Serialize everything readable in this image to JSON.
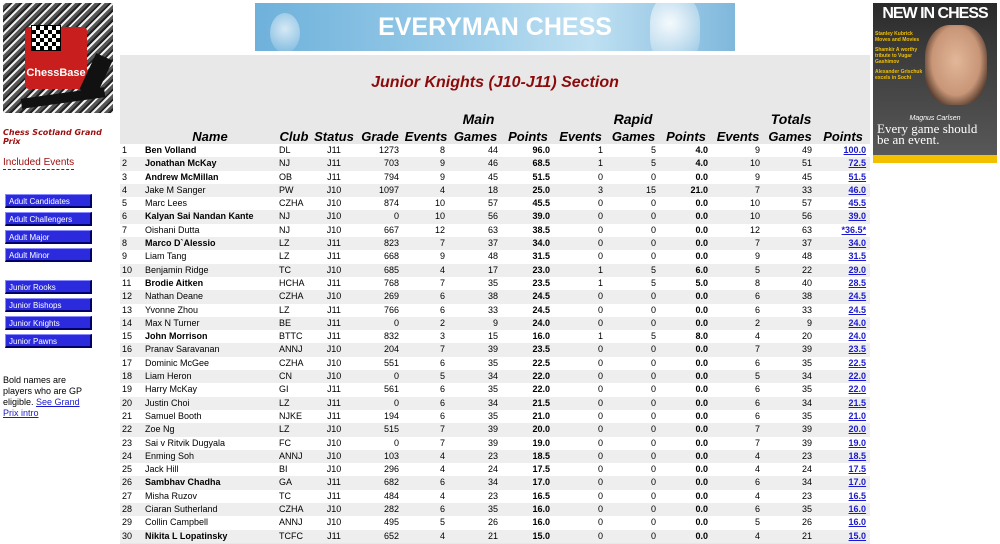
{
  "sidebar": {
    "logo_text": "ChessBase",
    "title": "Chess Scotland Grand Prix",
    "included_label": "Included Events",
    "nav_group1": [
      "Adult Candidates",
      "Adult Challengers",
      "Adult Major",
      "Adult Minor"
    ],
    "nav_group2": [
      "Junior Rooks",
      "Junior Bishops",
      "Junior Knights",
      "Junior Pawns"
    ],
    "note_text": "Bold names are players who are GP eligible.",
    "note_link": "See Grand Prix intro"
  },
  "banner": {
    "text": "EVERYMAN CHESS"
  },
  "magazine": {
    "title": "NEW IN CHESS",
    "line1": "Stanley Kubrick Moves and Movies",
    "line2": "Shamkir A worthy tribute to Vugar Gashimov",
    "line3": "Alexander Grischuk excels in Sochi",
    "cover_name": "Magnus Carlsen",
    "quote": "Every game should be an event."
  },
  "section_title": "Junior Knights (J10-J11) Section",
  "groups": {
    "main": "Main",
    "rapid": "Rapid",
    "totals": "Totals"
  },
  "columns": {
    "name": "Name",
    "club": "Club",
    "status": "Status",
    "grade": "Grade",
    "events": "Events",
    "games": "Games",
    "points": "Points"
  },
  "rows": [
    {
      "rank": "1",
      "name": "Ben Volland",
      "bold": true,
      "club": "DL",
      "status": "J11",
      "grade": "1273",
      "m_events": "8",
      "m_games": "44",
      "m_points": "96.0",
      "r_events": "1",
      "r_games": "5",
      "r_points": "4.0",
      "t_events": "9",
      "t_games": "49",
      "t_points": "100.0"
    },
    {
      "rank": "2",
      "name": "Jonathan McKay",
      "bold": true,
      "club": "NJ",
      "status": "J11",
      "grade": "703",
      "m_events": "9",
      "m_games": "46",
      "m_points": "68.5",
      "r_events": "1",
      "r_games": "5",
      "r_points": "4.0",
      "t_events": "10",
      "t_games": "51",
      "t_points": "72.5"
    },
    {
      "rank": "3",
      "name": "Andrew McMillan",
      "bold": true,
      "club": "OB",
      "status": "J11",
      "grade": "794",
      "m_events": "9",
      "m_games": "45",
      "m_points": "51.5",
      "r_events": "0",
      "r_games": "0",
      "r_points": "0.0",
      "t_events": "9",
      "t_games": "45",
      "t_points": "51.5"
    },
    {
      "rank": "4",
      "name": "Jake M Sanger",
      "bold": false,
      "club": "PW",
      "status": "J10",
      "grade": "1097",
      "m_events": "4",
      "m_games": "18",
      "m_points": "25.0",
      "r_events": "3",
      "r_games": "15",
      "r_points": "21.0",
      "t_events": "7",
      "t_games": "33",
      "t_points": "46.0"
    },
    {
      "rank": "5",
      "name": "Marc Lees",
      "bold": false,
      "club": "CZHA",
      "status": "J10",
      "grade": "874",
      "m_events": "10",
      "m_games": "57",
      "m_points": "45.5",
      "r_events": "0",
      "r_games": "0",
      "r_points": "0.0",
      "t_events": "10",
      "t_games": "57",
      "t_points": "45.5"
    },
    {
      "rank": "6",
      "name": "Kalyan Sai Nandan Kante",
      "bold": true,
      "club": "NJ",
      "status": "J10",
      "grade": "0",
      "m_events": "10",
      "m_games": "56",
      "m_points": "39.0",
      "r_events": "0",
      "r_games": "0",
      "r_points": "0.0",
      "t_events": "10",
      "t_games": "56",
      "t_points": "39.0"
    },
    {
      "rank": "7",
      "name": "Oishani Dutta",
      "bold": false,
      "club": "NJ",
      "status": "J10",
      "grade": "667",
      "m_events": "12",
      "m_games": "63",
      "m_points": "38.5",
      "r_events": "0",
      "r_games": "0",
      "r_points": "0.0",
      "t_events": "12",
      "t_games": "63",
      "t_points": "*36.5*"
    },
    {
      "rank": "8",
      "name": "Marco D`Alessio",
      "bold": true,
      "club": "LZ",
      "status": "J11",
      "grade": "823",
      "m_events": "7",
      "m_games": "37",
      "m_points": "34.0",
      "r_events": "0",
      "r_games": "0",
      "r_points": "0.0",
      "t_events": "7",
      "t_games": "37",
      "t_points": "34.0"
    },
    {
      "rank": "9",
      "name": "Liam Tang",
      "bold": false,
      "club": "LZ",
      "status": "J11",
      "grade": "668",
      "m_events": "9",
      "m_games": "48",
      "m_points": "31.5",
      "r_events": "0",
      "r_games": "0",
      "r_points": "0.0",
      "t_events": "9",
      "t_games": "48",
      "t_points": "31.5"
    },
    {
      "rank": "10",
      "name": "Benjamin Ridge",
      "bold": false,
      "club": "TC",
      "status": "J10",
      "grade": "685",
      "m_events": "4",
      "m_games": "17",
      "m_points": "23.0",
      "r_events": "1",
      "r_games": "5",
      "r_points": "6.0",
      "t_events": "5",
      "t_games": "22",
      "t_points": "29.0"
    },
    {
      "rank": "11",
      "name": "Brodie Aitken",
      "bold": true,
      "club": "HCHA",
      "status": "J11",
      "grade": "768",
      "m_events": "7",
      "m_games": "35",
      "m_points": "23.5",
      "r_events": "1",
      "r_games": "5",
      "r_points": "5.0",
      "t_events": "8",
      "t_games": "40",
      "t_points": "28.5"
    },
    {
      "rank": "12",
      "name": "Nathan Deane",
      "bold": false,
      "club": "CZHA",
      "status": "J10",
      "grade": "269",
      "m_events": "6",
      "m_games": "38",
      "m_points": "24.5",
      "r_events": "0",
      "r_games": "0",
      "r_points": "0.0",
      "t_events": "6",
      "t_games": "38",
      "t_points": "24.5"
    },
    {
      "rank": "13",
      "name": "Yvonne Zhou",
      "bold": false,
      "club": "LZ",
      "status": "J11",
      "grade": "766",
      "m_events": "6",
      "m_games": "33",
      "m_points": "24.5",
      "r_events": "0",
      "r_games": "0",
      "r_points": "0.0",
      "t_events": "6",
      "t_games": "33",
      "t_points": "24.5"
    },
    {
      "rank": "14",
      "name": "Max N Turner",
      "bold": false,
      "club": "BE",
      "status": "J11",
      "grade": "0",
      "m_events": "2",
      "m_games": "9",
      "m_points": "24.0",
      "r_events": "0",
      "r_games": "0",
      "r_points": "0.0",
      "t_events": "2",
      "t_games": "9",
      "t_points": "24.0"
    },
    {
      "rank": "15",
      "name": "John Morrison",
      "bold": true,
      "club": "BTTC",
      "status": "J11",
      "grade": "832",
      "m_events": "3",
      "m_games": "15",
      "m_points": "16.0",
      "r_events": "1",
      "r_games": "5",
      "r_points": "8.0",
      "t_events": "4",
      "t_games": "20",
      "t_points": "24.0"
    },
    {
      "rank": "16",
      "name": "Pranav Saravanan",
      "bold": false,
      "club": "ANNJ",
      "status": "J10",
      "grade": "204",
      "m_events": "7",
      "m_games": "39",
      "m_points": "23.5",
      "r_events": "0",
      "r_games": "0",
      "r_points": "0.0",
      "t_events": "7",
      "t_games": "39",
      "t_points": "23.5"
    },
    {
      "rank": "17",
      "name": "Dominic McGee",
      "bold": false,
      "club": "CZHA",
      "status": "J10",
      "grade": "551",
      "m_events": "6",
      "m_games": "35",
      "m_points": "22.5",
      "r_events": "0",
      "r_games": "0",
      "r_points": "0.0",
      "t_events": "6",
      "t_games": "35",
      "t_points": "22.5"
    },
    {
      "rank": "18",
      "name": "Liam Heron",
      "bold": false,
      "club": "CN",
      "status": "J10",
      "grade": "0",
      "m_events": "5",
      "m_games": "34",
      "m_points": "22.0",
      "r_events": "0",
      "r_games": "0",
      "r_points": "0.0",
      "t_events": "5",
      "t_games": "34",
      "t_points": "22.0"
    },
    {
      "rank": "19",
      "name": "Harry McKay",
      "bold": false,
      "club": "GI",
      "status": "J11",
      "grade": "561",
      "m_events": "6",
      "m_games": "35",
      "m_points": "22.0",
      "r_events": "0",
      "r_games": "0",
      "r_points": "0.0",
      "t_events": "6",
      "t_games": "35",
      "t_points": "22.0"
    },
    {
      "rank": "20",
      "name": "Justin Choi",
      "bold": false,
      "club": "LZ",
      "status": "J11",
      "grade": "0",
      "m_events": "6",
      "m_games": "34",
      "m_points": "21.5",
      "r_events": "0",
      "r_games": "0",
      "r_points": "0.0",
      "t_events": "6",
      "t_games": "34",
      "t_points": "21.5"
    },
    {
      "rank": "21",
      "name": "Samuel Booth",
      "bold": false,
      "club": "NJKE",
      "status": "J11",
      "grade": "194",
      "m_events": "6",
      "m_games": "35",
      "m_points": "21.0",
      "r_events": "0",
      "r_games": "0",
      "r_points": "0.0",
      "t_events": "6",
      "t_games": "35",
      "t_points": "21.0"
    },
    {
      "rank": "22",
      "name": "Zoe Ng",
      "bold": false,
      "club": "LZ",
      "status": "J10",
      "grade": "515",
      "m_events": "7",
      "m_games": "39",
      "m_points": "20.0",
      "r_events": "0",
      "r_games": "0",
      "r_points": "0.0",
      "t_events": "7",
      "t_games": "39",
      "t_points": "20.0"
    },
    {
      "rank": "23",
      "name": "Sai v Ritvik Dugyala",
      "bold": false,
      "club": "FC",
      "status": "J10",
      "grade": "0",
      "m_events": "7",
      "m_games": "39",
      "m_points": "19.0",
      "r_events": "0",
      "r_games": "0",
      "r_points": "0.0",
      "t_events": "7",
      "t_games": "39",
      "t_points": "19.0"
    },
    {
      "rank": "24",
      "name": "Enming Soh",
      "bold": false,
      "club": "ANNJ",
      "status": "J10",
      "grade": "103",
      "m_events": "4",
      "m_games": "23",
      "m_points": "18.5",
      "r_events": "0",
      "r_games": "0",
      "r_points": "0.0",
      "t_events": "4",
      "t_games": "23",
      "t_points": "18.5"
    },
    {
      "rank": "25",
      "name": "Jack Hill",
      "bold": false,
      "club": "BI",
      "status": "J10",
      "grade": "296",
      "m_events": "4",
      "m_games": "24",
      "m_points": "17.5",
      "r_events": "0",
      "r_games": "0",
      "r_points": "0.0",
      "t_events": "4",
      "t_games": "24",
      "t_points": "17.5"
    },
    {
      "rank": "26",
      "name": "Sambhav Chadha",
      "bold": true,
      "club": "GA",
      "status": "J11",
      "grade": "682",
      "m_events": "6",
      "m_games": "34",
      "m_points": "17.0",
      "r_events": "0",
      "r_games": "0",
      "r_points": "0.0",
      "t_events": "6",
      "t_games": "34",
      "t_points": "17.0"
    },
    {
      "rank": "27",
      "name": "Misha Ruzov",
      "bold": false,
      "club": "TC",
      "status": "J11",
      "grade": "484",
      "m_events": "4",
      "m_games": "23",
      "m_points": "16.5",
      "r_events": "0",
      "r_games": "0",
      "r_points": "0.0",
      "t_events": "4",
      "t_games": "23",
      "t_points": "16.5"
    },
    {
      "rank": "28",
      "name": "Ciaran Sutherland",
      "bold": false,
      "club": "CZHA",
      "status": "J10",
      "grade": "282",
      "m_events": "6",
      "m_games": "35",
      "m_points": "16.0",
      "r_events": "0",
      "r_games": "0",
      "r_points": "0.0",
      "t_events": "6",
      "t_games": "35",
      "t_points": "16.0"
    },
    {
      "rank": "29",
      "name": "Collin Campbell",
      "bold": false,
      "club": "ANNJ",
      "status": "J10",
      "grade": "495",
      "m_events": "5",
      "m_games": "26",
      "m_points": "16.0",
      "r_events": "0",
      "r_games": "0",
      "r_points": "0.0",
      "t_events": "5",
      "t_games": "26",
      "t_points": "16.0"
    },
    {
      "rank": "30",
      "name": "Nikita L Lopatinsky",
      "bold": true,
      "club": "TCFC",
      "status": "J11",
      "grade": "652",
      "m_events": "4",
      "m_games": "21",
      "m_points": "15.0",
      "r_events": "0",
      "r_games": "0",
      "r_points": "0.0",
      "t_events": "4",
      "t_games": "21",
      "t_points": "15.0"
    }
  ]
}
